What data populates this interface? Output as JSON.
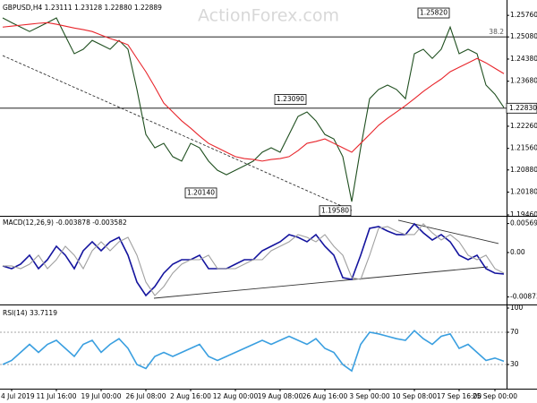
{
  "chart_data": [
    {
      "type": "line",
      "title": "GBPUSD,H4  1.23111 1.23128 1.22880 1.22889",
      "watermark": "ActionForex.com",
      "ylim": [
        1.1946,
        1.2616
      ],
      "yticks": [
        {
          "value": 1.2576,
          "label": "1.25760"
        },
        {
          "value": 1.2508,
          "label": "1.25080"
        },
        {
          "value": 1.2438,
          "label": "1.24380"
        },
        {
          "value": 1.2368,
          "label": "1.23680"
        },
        {
          "value": 1.2226,
          "label": "1.22260"
        },
        {
          "value": 1.2156,
          "label": "1.21560"
        },
        {
          "value": 1.2088,
          "label": "1.20880"
        },
        {
          "value": 1.2018,
          "label": "1.20180"
        },
        {
          "value": 1.1946,
          "label": "1.19460"
        }
      ],
      "series": [
        {
          "color": "#1f4f1f",
          "values": [
            1.2568,
            1.2553,
            1.2539,
            1.2525,
            1.2539,
            1.2553,
            1.2568,
            1.2511,
            1.2455,
            1.2469,
            1.2497,
            1.2483,
            1.2469,
            1.2497,
            1.2469,
            1.2342,
            1.22,
            1.2158,
            1.2172,
            1.213,
            1.2116,
            1.2172,
            1.2158,
            1.2116,
            1.2087,
            1.2073,
            1.2087,
            1.2101,
            1.2116,
            1.2144,
            1.2158,
            1.2144,
            1.22,
            1.2257,
            1.2271,
            1.2243,
            1.22,
            1.2186,
            1.213,
            1.1988,
            1.2158,
            1.2313,
            1.2342,
            1.2356,
            1.2342,
            1.2313,
            1.2455,
            1.2469,
            1.244,
            1.2469,
            1.2539,
            1.2455,
            1.2469,
            1.2455,
            1.2356,
            1.2327,
            1.2285
          ]
        },
        {
          "color": "#e8252b",
          "values": [
            1.2539,
            1.2542,
            1.2545,
            1.2548,
            1.2551,
            1.2553,
            1.2548,
            1.2542,
            1.2536,
            1.2531,
            1.2525,
            1.2514,
            1.2503,
            1.2494,
            1.2483,
            1.244,
            1.2398,
            1.235,
            1.2299,
            1.2271,
            1.2243,
            1.222,
            1.2195,
            1.2172,
            1.2158,
            1.2144,
            1.213,
            1.2124,
            1.2121,
            1.2116,
            1.2121,
            1.2124,
            1.213,
            1.2149,
            1.2172,
            1.2178,
            1.2186,
            1.2172,
            1.2158,
            1.2144,
            1.2172,
            1.22,
            1.2229,
            1.2251,
            1.2271,
            1.2291,
            1.2313,
            1.2336,
            1.2356,
            1.2375,
            1.2398,
            1.2412,
            1.2426,
            1.244,
            1.2426,
            1.2409,
            1.2392
          ]
        }
      ],
      "hlines": [
        {
          "value": 1.2508,
          "label": "38.2",
          "label_position": "inside"
        },
        {
          "value": 1.2283,
          "label": "1.22830",
          "label_position": "axis"
        }
      ],
      "trendlines": [
        {
          "points": [
            [
              0,
              1.2449
            ],
            [
              39,
              1.196
            ]
          ],
          "dash": true
        }
      ],
      "annotations": [
        {
          "label": "1.25820",
          "value": 1.2582,
          "index": 50
        },
        {
          "label": "1.23090",
          "value": 1.2309,
          "index": 34
        },
        {
          "label": "1.20140",
          "value": 1.2014,
          "index": 24
        },
        {
          "label": "1.19580",
          "value": 1.1958,
          "index": 39
        }
      ]
    },
    {
      "type": "line",
      "title": "MACD(12,26,9) -0.003878 -0.003582",
      "ylim": [
        -0.00986,
        0.00686
      ],
      "yticks": [
        0.005694,
        {
          "value": 0,
          "label": "0.00"
        },
        -0.008737
      ],
      "series": [
        {
          "color": "#14149e",
          "values": [
            -0.00264,
            -0.00317,
            -0.00229,
            -0.00053,
            -0.00317,
            -0.00141,
            0.00123,
            -0.00053,
            -0.00317,
            0.00035,
            0.00211,
            0.00035,
            0.00211,
            0.00299,
            -0.00053,
            -0.00581,
            -0.00845,
            -0.00669,
            -0.00405,
            -0.00229,
            -0.00141,
            -0.00141,
            -0.00053,
            -0.00317,
            -0.00317,
            -0.00317,
            -0.00229,
            -0.00141,
            -0.00141,
            0.00035,
            0.00123,
            0.00211,
            0.00352,
            0.00299,
            0.00211,
            0.00352,
            0.00123,
            -0.00053,
            -0.00493,
            -0.00528,
            -0.00053,
            0.00475,
            0.0051,
            0.00422,
            0.00352,
            0.00352,
            0.00563,
            0.00387,
            0.00246,
            0.00352,
            0.00211,
            -0.00053,
            -0.00141,
            -0.00053,
            -0.00317,
            -0.00405,
            -0.00422
          ]
        },
        {
          "color": "#a0a0a0",
          "values": [
            -0.00264,
            -0.00264,
            -0.00317,
            -0.00229,
            -0.00053,
            -0.00317,
            -0.00141,
            0.00123,
            -0.00053,
            -0.00317,
            0.00035,
            0.00211,
            0.00035,
            0.00211,
            0.00299,
            -0.00053,
            -0.00581,
            -0.00845,
            -0.00669,
            -0.00405,
            -0.00229,
            -0.00141,
            -0.00141,
            -0.00053,
            -0.00317,
            -0.00317,
            -0.00317,
            -0.00229,
            -0.00141,
            -0.00141,
            0.00035,
            0.00123,
            0.00211,
            0.00352,
            0.00299,
            0.00211,
            0.00352,
            0.00123,
            -0.00053,
            -0.00493,
            -0.00528,
            -0.00053,
            0.00475,
            0.0051,
            0.00422,
            0.00352,
            0.00352,
            0.00563,
            0.00387,
            0.00246,
            0.00352,
            0.00211,
            -0.00053,
            -0.00141,
            -0.00053,
            -0.00317,
            -0.00405
          ]
        }
      ],
      "trendlines": [
        {
          "points": [
            [
              16.9,
              -0.00898
            ],
            [
              54.2,
              -0.00282
            ]
          ],
          "dash": false
        },
        {
          "points": [
            [
              44.2,
              0.00634
            ],
            [
              55.4,
              0.00176
            ]
          ],
          "dash": false
        }
      ]
    },
    {
      "type": "line",
      "title": "RSI(14) 33.7119",
      "ylim": [
        0,
        100
      ],
      "yticks": [
        100,
        70,
        30
      ],
      "categories": [
        null,
        "4 Jul 2019",
        null,
        null,
        null,
        null,
        "11 Jul 16:00",
        null,
        null,
        null,
        null,
        "19 Jul 00:00",
        null,
        null,
        null,
        null,
        "26 Jul 08:00",
        null,
        null,
        null,
        null,
        "2 Aug 16:00",
        null,
        null,
        null,
        null,
        "12 Aug 00:00",
        null,
        null,
        null,
        null,
        "19 Aug 08:00",
        null,
        null,
        null,
        null,
        "26 Aug 16:00",
        null,
        null,
        null,
        null,
        "3 Sep 00:00",
        null,
        null,
        null,
        null,
        "10 Sep 08:00",
        null,
        null,
        null,
        null,
        "17 Sep 16:00",
        null,
        null,
        null,
        "25 Sep 00:00",
        null
      ],
      "series": [
        {
          "color": "#3a9fe0",
          "values": [
            30,
            35,
            45,
            55,
            45,
            55,
            60,
            50,
            40,
            55,
            60,
            45,
            55,
            62,
            50,
            30,
            25,
            40,
            45,
            40,
            45,
            50,
            55,
            40,
            35,
            40,
            45,
            50,
            55,
            60,
            55,
            60,
            65,
            60,
            55,
            62,
            50,
            45,
            30,
            22,
            55,
            70,
            68,
            65,
            62,
            60,
            72,
            62,
            55,
            65,
            68,
            50,
            55,
            45,
            35,
            38,
            34
          ]
        }
      ],
      "hlines": [
        {
          "value": 70,
          "dash": true
        },
        {
          "value": 30,
          "dash": true
        }
      ]
    }
  ]
}
